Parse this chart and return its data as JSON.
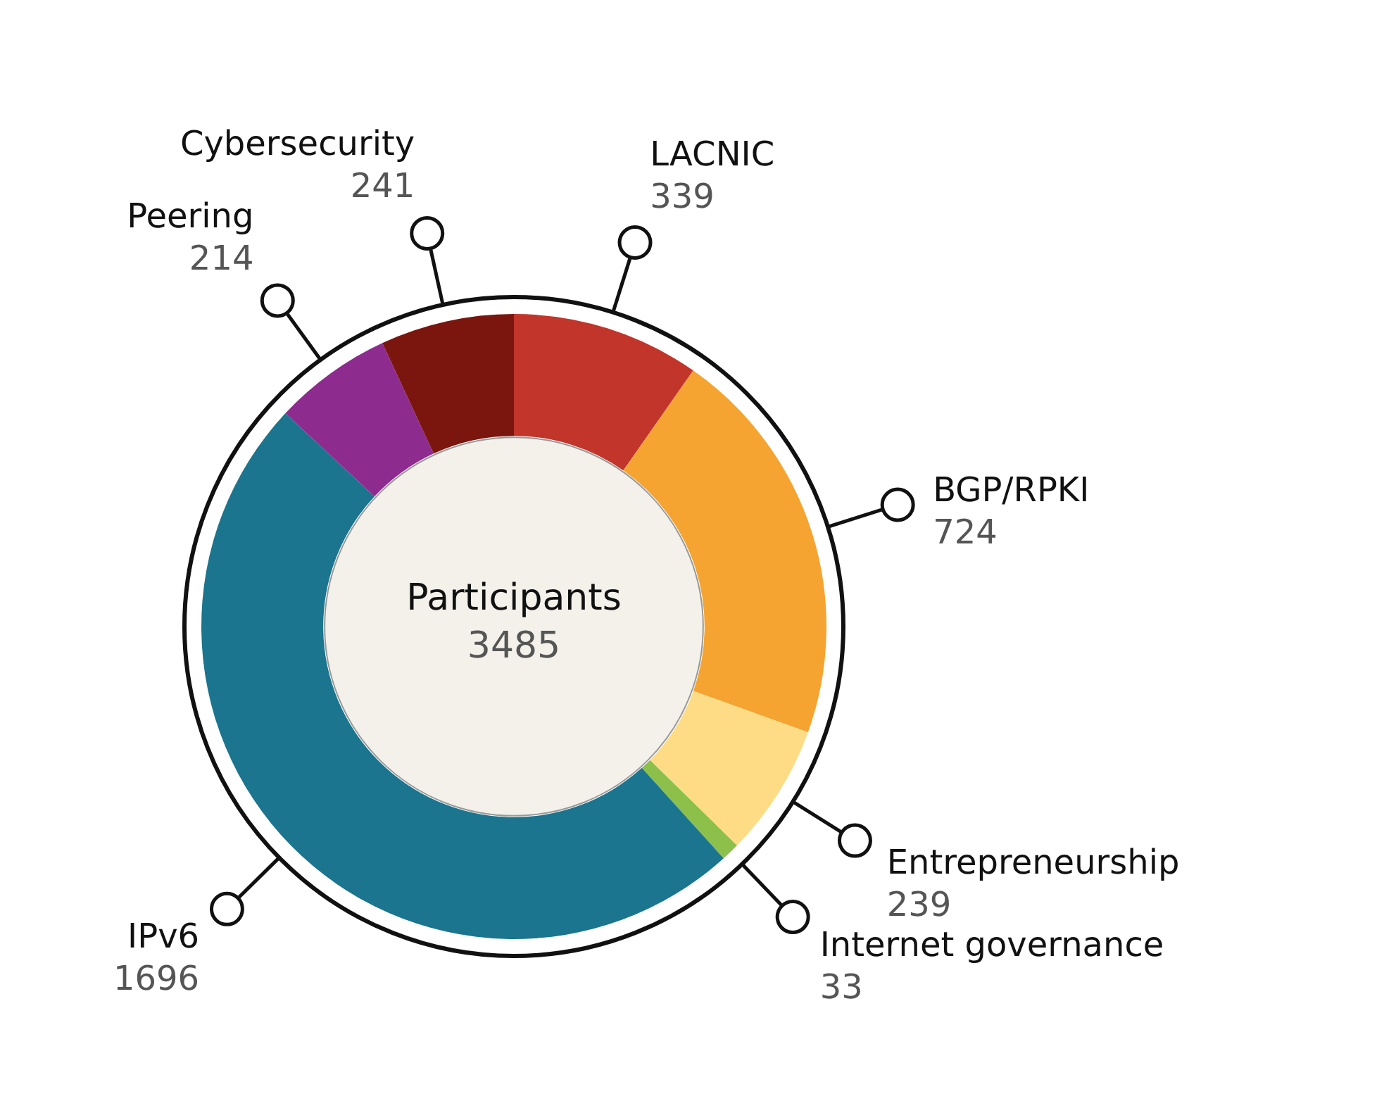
{
  "chart_data": {
    "type": "donut",
    "categories": [
      "LACNIC",
      "BGP/RPKI",
      "Entrepreneurship",
      "Internet governance",
      "IPv6",
      "Peering",
      "Cybersecurity"
    ],
    "values": [
      339,
      724,
      239,
      33,
      1696,
      214,
      241
    ],
    "colors": [
      "#c1352a",
      "#f5a431",
      "#fddc85",
      "#8cc04b",
      "#1b758f",
      "#8e2b8e",
      "#7a160e"
    ],
    "annotations": [
      "Participants",
      "3485"
    ],
    "data_labels": true,
    "legend": false
  }
}
